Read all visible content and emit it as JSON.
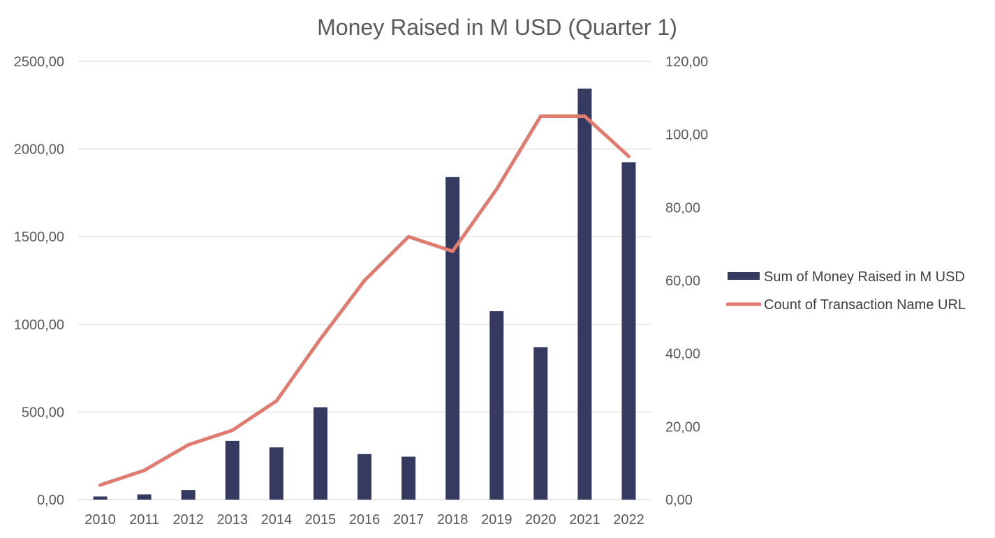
{
  "chart_data": {
    "type": "bar+line",
    "title": "Money Raised in M USD (Quarter 1)",
    "categories": [
      "2010",
      "2011",
      "2012",
      "2013",
      "2014",
      "2015",
      "2016",
      "2017",
      "2018",
      "2019",
      "2020",
      "2021",
      "2022"
    ],
    "series": [
      {
        "name": "Sum of Money Raised in M USD",
        "type": "bar",
        "axis": "left",
        "color": "#363a60",
        "values": [
          18,
          30,
          55,
          335,
          298,
          527,
          260,
          245,
          1840,
          1075,
          870,
          2345,
          1925
        ]
      },
      {
        "name": "Count of Transaction Name URL",
        "type": "line",
        "axis": "right",
        "color": "#e07b6f",
        "values": [
          4,
          8,
          15,
          19,
          27,
          44,
          60,
          72,
          68,
          85,
          105,
          105,
          94
        ]
      }
    ],
    "y_left": {
      "ylim": [
        0,
        2500
      ],
      "ticks": [
        0,
        500,
        1000,
        1500,
        2000,
        2500
      ],
      "tick_labels": [
        "0,00",
        "500,00",
        "1000,00",
        "1500,00",
        "2000,00",
        "2500,00"
      ]
    },
    "y_right": {
      "ylim": [
        0,
        120
      ],
      "ticks": [
        0,
        20,
        40,
        60,
        80,
        100,
        120
      ],
      "tick_labels": [
        "0,00",
        "20,00",
        "40,00",
        "60,00",
        "80,00",
        "100,00",
        "120,00"
      ]
    },
    "grid": true,
    "legend": "right"
  }
}
